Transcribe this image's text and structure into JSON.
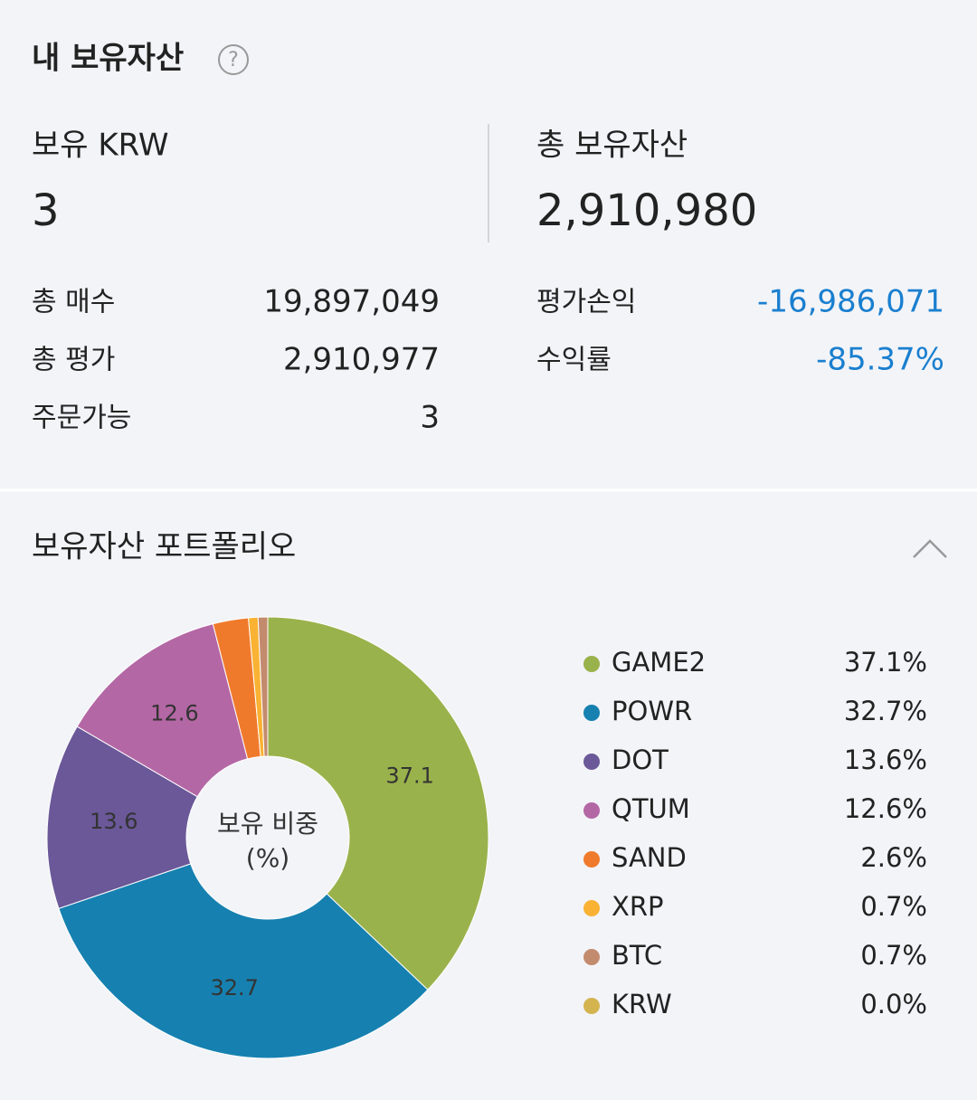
{
  "header": {
    "title": "내 보유자산",
    "help_icon": "?"
  },
  "summary": {
    "krw": {
      "label": "보유 KRW",
      "value": "3"
    },
    "total": {
      "label": "총 보유자산",
      "value": "2,910,980"
    },
    "left_rows": [
      [
        "총 매수",
        "19,897,049"
      ],
      [
        "총 평가",
        "2,910,977"
      ],
      [
        "주문가능",
        "3"
      ]
    ],
    "right_rows": [
      [
        "평가손익",
        "-16,986,071"
      ],
      [
        "수익률",
        "-85.37%"
      ]
    ]
  },
  "portfolio": {
    "title": "보유자산 포트폴리오"
  },
  "chart_data": {
    "type": "pie",
    "center_label": [
      "보유 비중",
      "(%)"
    ],
    "categories": [
      "GAME2",
      "POWR",
      "DOT",
      "QTUM",
      "SAND",
      "XRP",
      "BTC",
      "KRW"
    ],
    "values": [
      37.1,
      32.7,
      13.6,
      12.6,
      2.6,
      0.7,
      0.7,
      0.0
    ],
    "value_labels": [
      "37.1%",
      "32.7%",
      "13.6%",
      "12.6%",
      "2.6%",
      "0.7%",
      "0.7%",
      "0.0%"
    ],
    "colors": [
      "#9ab24c",
      "#1681b0",
      "#6a5898",
      "#b467a5",
      "#f07a2c",
      "#f9b233",
      "#c38b6e",
      "#d4b44f"
    ]
  }
}
